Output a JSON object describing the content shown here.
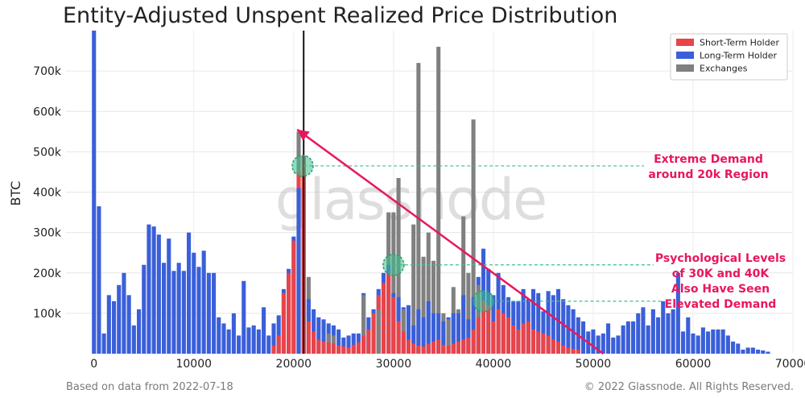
{
  "chart_data": {
    "type": "bar",
    "title": "Entity-Adjusted Unspent Realized Price Distribution",
    "ylabel": "BTC",
    "xlim": [
      -2800,
      70000
    ],
    "ylim": [
      0,
      800000
    ],
    "x_ticks": [
      0,
      10000,
      20000,
      30000,
      40000,
      50000,
      60000,
      70000
    ],
    "y_ticks": [
      100000,
      200000,
      300000,
      400000,
      500000,
      600000,
      700000
    ],
    "y_tick_labels": [
      "100k",
      "200k",
      "300k",
      "400k",
      "500k",
      "600k",
      "700k"
    ],
    "grid": true,
    "legend_position": "top-right",
    "bin_width": 500,
    "colors": {
      "short_term": "#e8444a",
      "long_term": "#3a5fd9",
      "exchanges": "#808080",
      "annotation": "#e8175d",
      "highlight": "#3dbf8c"
    },
    "series": [
      {
        "name": "Short-Term Holder",
        "x": [
          18000,
          18500,
          19000,
          19500,
          20000,
          20500,
          21000,
          21500,
          22000,
          22500,
          23000,
          23500,
          24000,
          24500,
          25000,
          25500,
          26000,
          26500,
          27000,
          27500,
          28000,
          28500,
          29000,
          29500,
          30000,
          30500,
          31000,
          31500,
          32000,
          32500,
          33000,
          33500,
          34000,
          34500,
          35000,
          35500,
          36000,
          36500,
          37000,
          37500,
          38000,
          38500,
          39000,
          39500,
          40000,
          40500,
          41000,
          41500,
          42000,
          42500,
          43000,
          43500,
          44000,
          44500,
          45000,
          45500,
          46000,
          46500,
          47000,
          47500,
          48000,
          48500
        ],
        "values": [
          20000,
          45000,
          150000,
          200000,
          280000,
          450000,
          490000,
          80000,
          55000,
          35000,
          30000,
          28000,
          25000,
          20000,
          18000,
          15000,
          22000,
          28000,
          45000,
          60000,
          100000,
          145000,
          175000,
          200000,
          140000,
          80000,
          55000,
          35000,
          25000,
          20000,
          18000,
          25000,
          30000,
          35000,
          22000,
          20000,
          25000,
          30000,
          35000,
          40000,
          60000,
          90000,
          130000,
          120000,
          80000,
          110000,
          100000,
          90000,
          70000,
          60000,
          75000,
          80000,
          60000,
          55000,
          50000,
          45000,
          35000,
          30000,
          20000,
          15000,
          12000,
          10000
        ]
      },
      {
        "name": "Long-Term Holder",
        "x": [
          0,
          500,
          1000,
          1500,
          2000,
          2500,
          3000,
          3500,
          4000,
          4500,
          5000,
          5500,
          6000,
          6500,
          7000,
          7500,
          8000,
          8500,
          9000,
          9500,
          10000,
          10500,
          11000,
          11500,
          12000,
          12500,
          13000,
          13500,
          14000,
          14500,
          15000,
          15500,
          16000,
          16500,
          17000,
          17500,
          18000,
          18500,
          19000,
          19500,
          20000,
          20500,
          21000,
          21500,
          22000,
          22500,
          23000,
          23500,
          24000,
          24500,
          25000,
          25500,
          26000,
          26500,
          27000,
          27500,
          28000,
          28500,
          29000,
          29500,
          30000,
          30500,
          31000,
          31500,
          32000,
          32500,
          33000,
          33500,
          34000,
          34500,
          35000,
          35500,
          36000,
          36500,
          37000,
          37500,
          38000,
          38500,
          39000,
          39500,
          40000,
          40500,
          41000,
          41500,
          42000,
          42500,
          43000,
          43500,
          44000,
          44500,
          45000,
          45500,
          46000,
          46500,
          47000,
          47500,
          48000,
          48500,
          49000,
          49500,
          50000,
          50500,
          51000,
          51500,
          52000,
          52500,
          53000,
          53500,
          54000,
          54500,
          55000,
          55500,
          56000,
          56500,
          57000,
          57500,
          58000,
          58500,
          59000,
          59500,
          60000,
          60500,
          61000,
          61500,
          62000,
          62500,
          63000,
          63500,
          64000,
          64500,
          65000,
          65500,
          66000,
          66500,
          67000,
          67500
        ],
        "values": [
          800000,
          365000,
          50000,
          145000,
          130000,
          170000,
          200000,
          145000,
          70000,
          110000,
          220000,
          320000,
          315000,
          295000,
          225000,
          285000,
          205000,
          225000,
          205000,
          300000,
          250000,
          215000,
          255000,
          200000,
          200000,
          90000,
          75000,
          60000,
          100000,
          45000,
          180000,
          65000,
          70000,
          60000,
          115000,
          45000,
          75000,
          95000,
          160000,
          210000,
          290000,
          410000,
          490000,
          135000,
          110000,
          90000,
          85000,
          75000,
          70000,
          60000,
          40000,
          45000,
          50000,
          50000,
          150000,
          90000,
          110000,
          160000,
          200000,
          220000,
          150000,
          140000,
          115000,
          120000,
          70000,
          110000,
          90000,
          130000,
          100000,
          100000,
          80000,
          90000,
          100000,
          100000,
          145000,
          85000,
          140000,
          190000,
          260000,
          210000,
          145000,
          200000,
          170000,
          140000,
          130000,
          130000,
          160000,
          135000,
          160000,
          150000,
          105000,
          155000,
          145000,
          160000,
          135000,
          120000,
          110000,
          90000,
          80000,
          55000,
          60000,
          45000,
          50000,
          75000,
          40000,
          45000,
          70000,
          80000,
          80000,
          100000,
          115000,
          70000,
          110000,
          90000,
          130000,
          100000,
          110000,
          200000,
          55000,
          90000,
          50000,
          45000,
          65000,
          55000,
          60000,
          60000,
          60000,
          45000,
          30000,
          25000,
          10000,
          15000,
          15000,
          10000,
          8000,
          5000
        ]
      },
      {
        "name": "Exchanges",
        "x": [
          20500,
          21500,
          23500,
          24000,
          27000,
          28500,
          29500,
          30000,
          30500,
          31000,
          31500,
          32000,
          32500,
          33000,
          33500,
          34000,
          34500,
          35000,
          35500,
          36000,
          36500,
          37000,
          37500,
          38000,
          38500
        ],
        "values": [
          550000,
          190000,
          50000,
          45000,
          145000,
          110000,
          350000,
          350000,
          435000,
          110000,
          120000,
          320000,
          720000,
          240000,
          300000,
          230000,
          760000,
          100000,
          85000,
          165000,
          110000,
          340000,
          200000,
          580000,
          170000
        ]
      }
    ],
    "annotations": [
      {
        "text": [
          "Extreme Demand",
          "around 20k Region"
        ]
      },
      {
        "text": [
          "Psychological Levels",
          "of 30K and 40K",
          "Also Have Seen",
          "Elevated Demand"
        ]
      }
    ],
    "watermark": "glassnode"
  },
  "footer": {
    "left": "Based on data from 2022-07-18",
    "right": "© 2022 Glassnode. All Rights Reserved."
  }
}
